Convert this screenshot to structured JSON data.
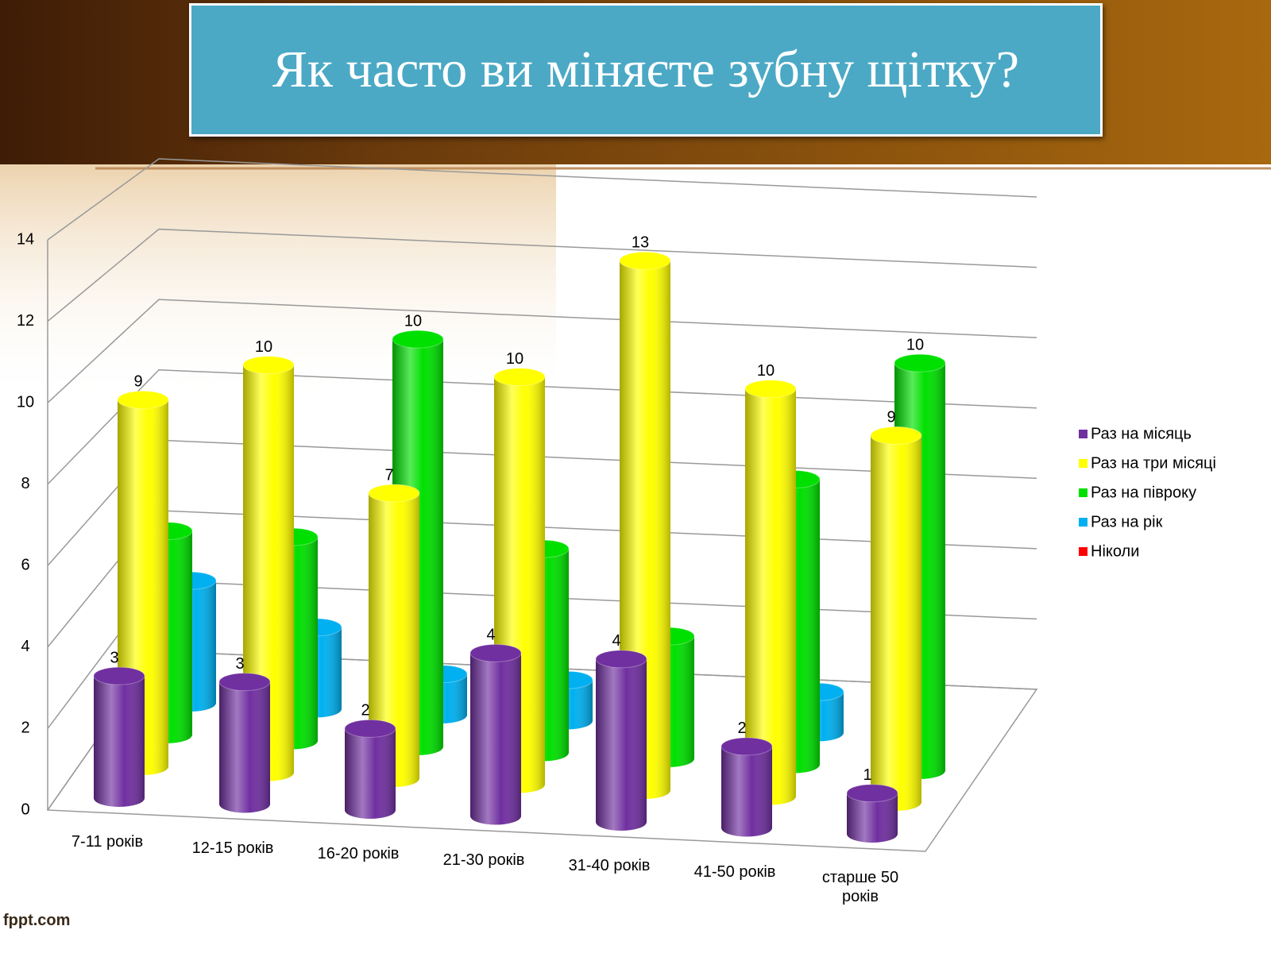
{
  "slide": {
    "title": "Як часто ви міняєте зубну щітку?",
    "footer": "fppt.com"
  },
  "chart_data": {
    "type": "bar3d",
    "categories": [
      "7-11 років",
      "12-15 років",
      "16-20 років",
      "21-30 років",
      "31-40 років",
      "41-50 років",
      "старше 50 років"
    ],
    "series": [
      {
        "name": "Раз на місяць",
        "color": "#7030a0",
        "values": [
          3,
          3,
          2,
          4,
          4,
          2,
          1
        ]
      },
      {
        "name": "Раз на три місяці",
        "color": "#ffff00",
        "values": [
          9,
          10,
          7,
          10,
          13,
          10,
          9
        ]
      },
      {
        "name": "Раз на півроку",
        "color": "#00e000",
        "values": [
          5,
          5,
          10,
          5,
          3,
          7,
          10
        ]
      },
      {
        "name": "Раз на рік",
        "color": "#00b0f0",
        "values": [
          3,
          2,
          1,
          1,
          null,
          1,
          null
        ]
      },
      {
        "name": "Ніколи",
        "color": "#ff0000",
        "values": [
          null,
          null,
          null,
          null,
          null,
          null,
          null
        ]
      }
    ],
    "ylim": [
      0,
      14
    ],
    "yticks": [
      0,
      2,
      4,
      6,
      8,
      10,
      12,
      14
    ],
    "grid": true,
    "legend": "right"
  }
}
